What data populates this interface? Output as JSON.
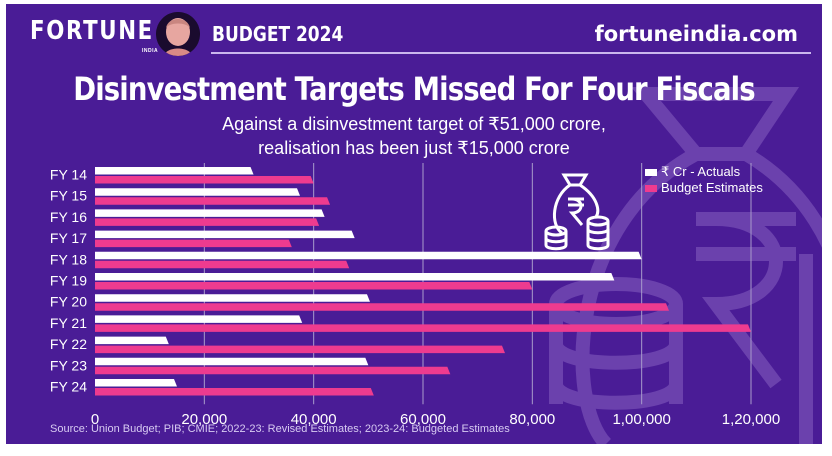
{
  "header": {
    "brand": "FORTUNE",
    "brand_sub": "INDIA",
    "section": "BUDGET 2024",
    "site": "fortuneindia.com"
  },
  "icons": {
    "avatar": "portrait-avatar",
    "illustration": "money-bag-coins-icon",
    "background": "money-bag-rupee-watermark"
  },
  "colors": {
    "background": "#4a1c96",
    "actuals": "#ffffff",
    "budget": "#ee3b8f",
    "grid": "#a99ccc"
  },
  "source": "Source: Union Budget; PIB; CMIE; 2022-23: Revised Estimates; 2023-24: Budgeted Estimates",
  "chart_data": {
    "type": "bar",
    "orientation": "horizontal",
    "title": "Disinvestment Targets Missed For Four Fiscals",
    "subtitle": [
      "Against a disinvestment target of ₹51,000 crore,",
      "realisation has been just ₹15,000 crore"
    ],
    "xlabel": "",
    "ylabel": "",
    "categories": [
      "FY 14",
      "FY 15",
      "FY 16",
      "FY 17",
      "FY 18",
      "FY 19",
      "FY 20",
      "FY 21",
      "FY 22",
      "FY 23",
      "FY 24"
    ],
    "series": [
      {
        "name": "₹ Cr - Actuals",
        "values": [
          29000,
          37500,
          42000,
          47500,
          100000,
          95000,
          50300,
          37900,
          13500,
          50000,
          15000
        ]
      },
      {
        "name": "Budget Estimates",
        "values": [
          40000,
          43000,
          41000,
          36000,
          46500,
          80000,
          105000,
          120000,
          75000,
          65000,
          51000
        ]
      }
    ],
    "xlim": [
      0,
      120000
    ],
    "xticks": [
      0,
      20000,
      40000,
      60000,
      80000,
      100000,
      120000
    ],
    "xtick_labels": [
      "0",
      "20,000",
      "40,000",
      "60,000",
      "80,000",
      "1,00,000",
      "1,20,000"
    ],
    "grid": true,
    "legend_position": "top-right"
  }
}
